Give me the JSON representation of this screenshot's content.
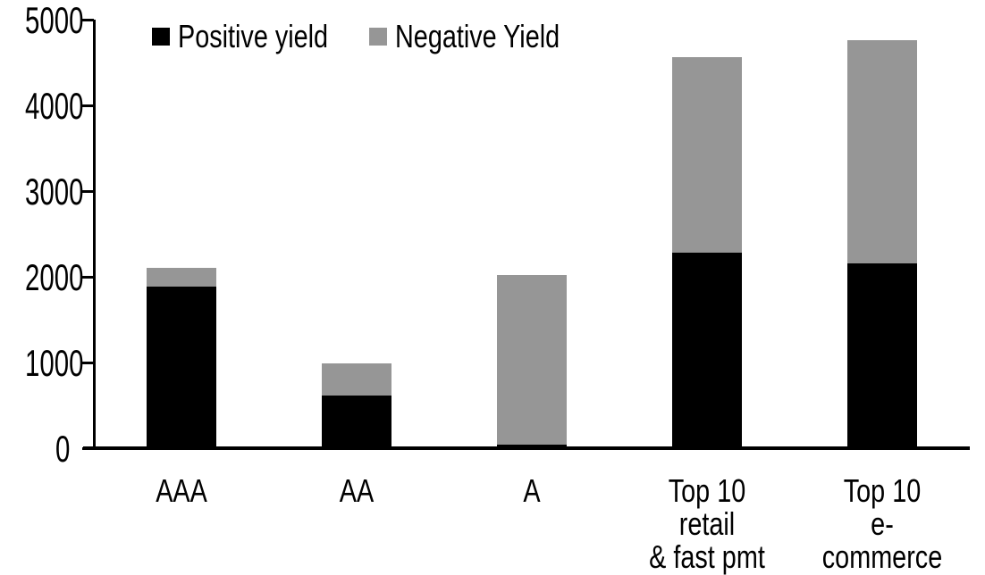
{
  "chart_data": {
    "type": "bar",
    "stacked": true,
    "title": "",
    "categories": [
      "AAA",
      "AA",
      "A",
      "Top 10 retail\n& fast pmt",
      "Top 10\ne-commerce"
    ],
    "series": [
      {
        "name": "Positive yield",
        "color": "#000000",
        "values": [
          1890,
          620,
          50,
          2290,
          2160
        ]
      },
      {
        "name": "Negative Yield",
        "color": "#969696",
        "values": [
          220,
          380,
          1980,
          2280,
          2610
        ]
      }
    ],
    "ylim": [
      0,
      5000
    ],
    "yticks": [
      0,
      1000,
      2000,
      3000,
      4000,
      5000
    ],
    "ytick_labels": [
      "0",
      "1000",
      "2000",
      "3000",
      "4000",
      "5000"
    ],
    "xlabel": "",
    "ylabel": "",
    "grid": false,
    "legend_position": "top-inside",
    "axis_color": "#000000",
    "background_color": "#ffffff"
  }
}
